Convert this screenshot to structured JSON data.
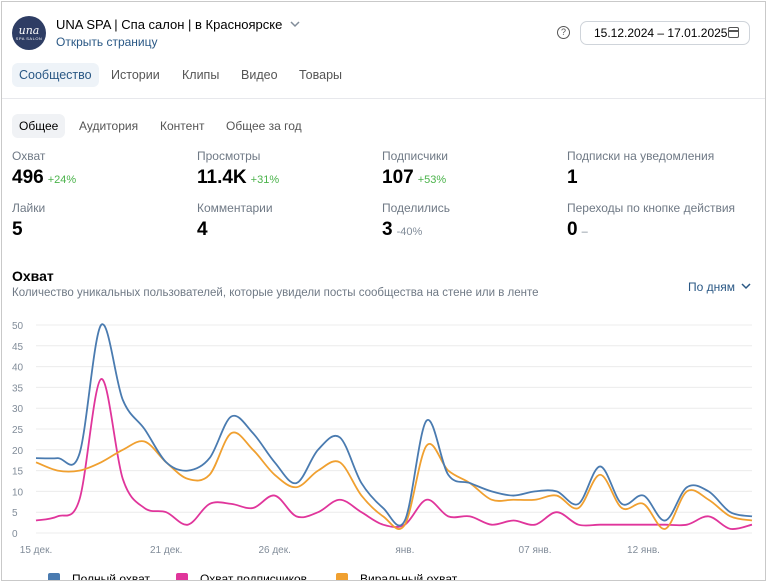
{
  "header": {
    "title": "UNA SPA | Спа салон | в Красноярске",
    "open_page": "Открыть страницу",
    "logo_text": "una",
    "logo_subtext": "SPA SALON",
    "help_icon": "question-circle-icon",
    "date_range": "15.12.2024 – 17.01.2025",
    "calendar_icon": "calendar-icon"
  },
  "main_tabs": [
    "Сообщество",
    "Истории",
    "Клипы",
    "Видео",
    "Товары"
  ],
  "sub_tabs": [
    "Общее",
    "Аудитория",
    "Контент",
    "Общее за год"
  ],
  "stats": [
    {
      "label": "Охват",
      "value": "496",
      "delta": "+24%",
      "trend": "up"
    },
    {
      "label": "Просмотры",
      "value": "11.4K",
      "delta": "+31%",
      "trend": "up"
    },
    {
      "label": "Подписчики",
      "value": "107",
      "delta": "+53%",
      "trend": "up"
    },
    {
      "label": "Подписки на уведомления",
      "value": "1",
      "delta": "",
      "trend": "none"
    },
    {
      "label": "Лайки",
      "value": "5",
      "delta": "",
      "trend": "none"
    },
    {
      "label": "Комментарии",
      "value": "4",
      "delta": "",
      "trend": "none"
    },
    {
      "label": "Поделились",
      "value": "3",
      "delta": "-40%",
      "trend": "down"
    },
    {
      "label": "Переходы по кнопке действия",
      "value": "0",
      "delta": "–",
      "trend": "none"
    }
  ],
  "reach": {
    "title": "Охват",
    "subtitle": "Количество уникальных пользователей, которые увидели посты сообщества на стене или в ленте",
    "period": "По дням"
  },
  "colors": {
    "accent": "#2a5885",
    "positive": "#4bb34b",
    "series_total": "#4a7bb0",
    "series_followers": "#e0359b",
    "series_viral": "#f0a030"
  },
  "chart_data": {
    "type": "line",
    "ylim": [
      0,
      50
    ],
    "yticks": [
      "0",
      "5",
      "10",
      "15",
      "20",
      "25",
      "30",
      "35",
      "40",
      "45",
      "50"
    ],
    "x": [
      "15 дек.",
      "16 дек.",
      "17 дек.",
      "18 дек.",
      "19 дек.",
      "20 дек.",
      "21 дек.",
      "22 дек.",
      "23 дек.",
      "24 дек.",
      "25 дек.",
      "26 дек.",
      "27 дек.",
      "28 дек.",
      "29 дек.",
      "30 дек.",
      "31 дек.",
      "янв.",
      "02 янв.",
      "03 янв.",
      "04 янв.",
      "05 янв.",
      "06 янв.",
      "07 янв.",
      "08 янв.",
      "09 янв.",
      "10 янв.",
      "11 янв.",
      "12 янв.",
      "13 янв.",
      "14 янв.",
      "15 янв.",
      "16 янв.",
      "17 янв."
    ],
    "xtick_labels": [
      "15 дек.",
      "21 дек.",
      "26 дек.",
      "янв.",
      "07 янв.",
      "12 янв."
    ],
    "xtick_index": [
      0,
      6,
      11,
      17,
      23,
      28
    ],
    "series": [
      {
        "name": "Полный охват",
        "values": [
          18,
          18,
          19,
          50,
          32,
          25,
          17,
          15,
          18,
          28,
          24,
          17,
          12,
          20,
          23,
          12,
          6,
          3,
          27,
          14,
          12,
          10,
          9,
          10,
          10,
          7,
          16,
          7,
          9,
          3,
          11,
          10,
          5,
          4
        ]
      },
      {
        "name": "Охват подписчиков",
        "values": [
          3,
          4,
          8,
          37,
          13,
          6,
          5,
          2,
          7,
          7,
          6,
          9,
          4,
          5,
          8,
          5,
          2,
          2,
          8,
          4,
          4,
          2,
          3,
          2,
          5,
          2,
          2,
          2,
          2,
          2,
          2,
          4,
          1,
          2
        ]
      },
      {
        "name": "Виральный охват",
        "values": [
          17,
          15,
          15,
          17,
          20,
          22,
          17,
          13,
          14,
          24,
          20,
          14,
          11,
          15,
          17,
          9,
          4,
          2,
          21,
          15,
          12,
          8,
          8,
          8,
          9,
          6,
          14,
          6,
          7,
          1,
          10,
          8,
          4,
          3
        ]
      }
    ]
  }
}
